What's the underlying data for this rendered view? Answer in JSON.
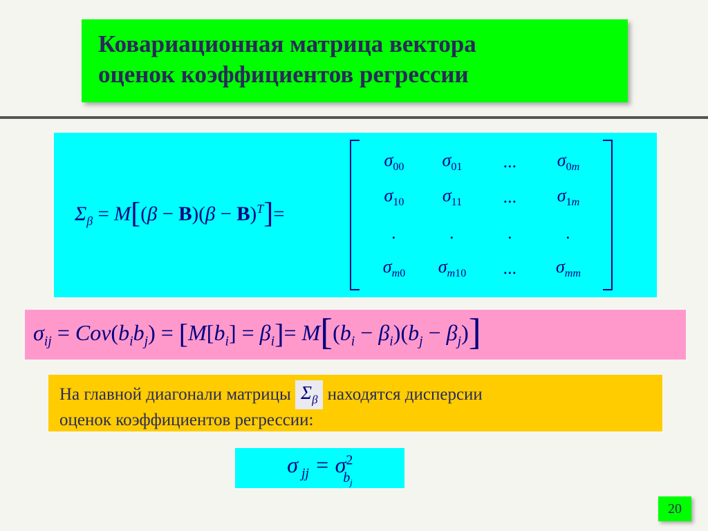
{
  "colors": {
    "title_bg": "#00ff00",
    "title_text": "#2a2a5a",
    "rule": "#555555",
    "cyan_bg": "#00ffff",
    "formula_text": "#000080",
    "pink_bg": "#ff99cc",
    "yellow_bg": "#ffcc00",
    "yellow_text": "#2a2a5a",
    "chip_bg": "#eaeaf0",
    "page_bg": "#00ff00",
    "slide_bg": "#f5f5f0"
  },
  "title": {
    "line1": "Ковариационная матрица вектора",
    "line2": "оценок коэффициентов регрессии"
  },
  "eq1": {
    "lhs_html": "Σ<span class='sub'>β</span>&nbsp;<span class='rm'>=</span>&nbsp;<span class='s'>M</span><span class='bracket-l-big'>[</span><span class='rm'>(</span>β&nbsp;<span class='rm'>−</span>&nbsp;<span class='bold'>B</span><span class='rm'>)(</span>β&nbsp;<span class='rm'>−</span>&nbsp;<span class='bold'>B</span><span class='rm'>)</span><span class='sup'>T</span><span class='bracket-r-big'>]</span><span class='rm'>=</span>",
    "matrix": [
      [
        "σ<span class='subn'>00</span>",
        "σ<span class='subn'>01</span>",
        "<span class='rm'>...</span>",
        "σ<span class='subn'>0</span><span class='sub'>m</span>"
      ],
      [
        "σ<span class='subn'>10</span>",
        "σ<span class='subn'>11</span>",
        "<span class='rm'>...</span>",
        "σ<span class='subn'>1</span><span class='sub'>m</span>"
      ],
      [
        "<span class='rm'>.</span>",
        "<span class='rm'>.</span>",
        "<span class='rm'>.</span>",
        "<span class='rm'>.</span>"
      ],
      [
        "σ<span class='sub'>m</span><span class='subn'>0</span>",
        "σ<span class='sub'>m</span><span class='subn'>10</span>",
        "<span class='rm'>...</span>",
        "σ<span class='sub'>mm</span>"
      ]
    ]
  },
  "eq2_html": "σ<span class='sub'>ij</span>&nbsp;<span class='rm'>=</span>&nbsp;Cov<span class='rm'>(</span>b<span class='sub'>i</span>b<span class='sub'>j</span><span class='rm'>)</span>&nbsp;<span class='rm'>=</span>&nbsp;<span class='pbracket-mid'>[</span>M<span class='rm'>[</span>b<span class='sub'>i</span><span class='rm'>]</span>&nbsp;<span class='rm'>=</span>&nbsp;β<span class='sub'>i</span><span class='pbracket-mid'>]</span><span class='rm'>=</span>&nbsp;M<span class='pbracket-big'>[</span><span class='rm'>(</span>b<span class='sub'>i</span>&nbsp;<span class='rm'>−</span>&nbsp;β<span class='sub'>i</span><span class='rm'>)(</span>b<span class='sub'>j</span>&nbsp;<span class='rm'>−</span>&nbsp;β<span class='sub'>j</span><span class='rm'>)</span><span class='pbracket-big'>]</span>",
  "yellow": {
    "pre": "На главной диагонали матрицы ",
    "chip_html": "Σ<span class='sub'>β</span>",
    "post": " находятся дисперсии",
    "line2": "оценок коэффициентов регрессии:"
  },
  "eq3_html": "σ<span class='sub'>&nbsp;jj</span>&nbsp;<span class='rm'>=</span>&nbsp;σ<span class='supn'>2</span><span class='sub' style='margin-left:-14px;position:relative;top:6px;'>b<span class='sub'>j</span></span>",
  "page_number": "20"
}
